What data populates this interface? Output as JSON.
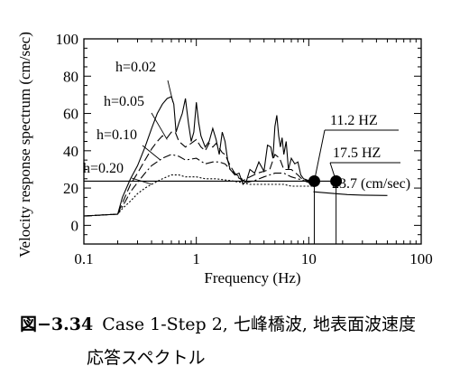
{
  "chart_data": {
    "type": "line",
    "xscale": "log",
    "xlim": [
      0.1,
      100
    ],
    "ylim": [
      -10,
      100
    ],
    "xlabel": "Frequency (Hz)",
    "ylabel": "Velocity response spectrum (cm/sec)",
    "xticks": [
      "0.1",
      "1",
      "10",
      "100"
    ],
    "yticks": [
      "0",
      "20",
      "40",
      "60",
      "80",
      "100"
    ],
    "grid": false,
    "series": [
      {
        "name": "h=0.02",
        "dash": "solid",
        "label_text": "h=0.02",
        "x": [
          0.1,
          0.2,
          0.22,
          0.26,
          0.3,
          0.35,
          0.4,
          0.45,
          0.5,
          0.55,
          0.6,
          0.63,
          0.66,
          0.7,
          0.75,
          0.8,
          0.85,
          0.9,
          0.95,
          1.0,
          1.05,
          1.1,
          1.2,
          1.3,
          1.4,
          1.5,
          1.6,
          1.7,
          1.8,
          1.9,
          2.0,
          2.2,
          2.4,
          2.6,
          2.8,
          3.0,
          3.3,
          3.6,
          4.0,
          4.3,
          4.6,
          4.8,
          5.0,
          5.2,
          5.4,
          5.6,
          5.8,
          6.0,
          6.3,
          6.6,
          7.0,
          7.5,
          8.0,
          8.5,
          9.0,
          10.0,
          11.0
        ],
        "y": [
          5,
          6,
          15,
          25,
          32,
          42,
          52,
          60,
          65,
          68,
          69,
          65,
          50,
          55,
          60,
          68,
          55,
          45,
          50,
          66,
          55,
          48,
          42,
          45,
          52,
          46,
          38,
          50,
          45,
          35,
          30,
          27,
          28,
          22,
          24,
          30,
          28,
          34,
          29,
          43,
          42,
          36,
          53,
          59,
          48,
          42,
          47,
          38,
          45,
          30,
          36,
          33,
          34,
          27,
          25,
          24,
          23
        ]
      },
      {
        "name": "h=0.05",
        "dash": "long",
        "label_text": "h=0.05",
        "x": [
          0.1,
          0.2,
          0.22,
          0.26,
          0.3,
          0.35,
          0.4,
          0.45,
          0.5,
          0.55,
          0.6,
          0.65,
          0.7,
          0.8,
          0.9,
          1.0,
          1.1,
          1.2,
          1.3,
          1.4,
          1.5,
          1.7,
          1.8,
          2.0,
          2.3,
          2.6,
          3.0,
          3.5,
          4.0,
          4.5,
          5.0,
          5.5,
          6.0,
          7.0,
          8.0,
          9.0,
          10.0,
          11.0
        ],
        "y": [
          5,
          6,
          12,
          22,
          28,
          35,
          41,
          45,
          48,
          47,
          50,
          50,
          45,
          42,
          44,
          46,
          42,
          40,
          44,
          42,
          44,
          39,
          38,
          32,
          26,
          24,
          26,
          28,
          29,
          30,
          38,
          36,
          30,
          30,
          27,
          24,
          24,
          23
        ]
      },
      {
        "name": "h=0.10",
        "dash": "dashdot",
        "label_text": "h=0.10",
        "x": [
          0.1,
          0.2,
          0.22,
          0.26,
          0.3,
          0.35,
          0.4,
          0.5,
          0.6,
          0.7,
          0.8,
          1.0,
          1.2,
          1.4,
          1.6,
          1.8,
          2.0,
          2.4,
          2.8,
          3.3,
          4.0,
          5.0,
          6.0,
          7.0,
          8.0,
          9.0,
          10.0,
          11.0
        ],
        "y": [
          5,
          6,
          10,
          18,
          23,
          28,
          32,
          36,
          38,
          37,
          35,
          36,
          33,
          34,
          34,
          33,
          30,
          26,
          23,
          24,
          26,
          28,
          28,
          26,
          25,
          24,
          23,
          23
        ]
      },
      {
        "name": "h=0.20",
        "dash": "dotted",
        "label_text": "h=0.20",
        "x": [
          0.1,
          0.2,
          0.22,
          0.26,
          0.3,
          0.35,
          0.4,
          0.5,
          0.6,
          0.7,
          0.8,
          1.0,
          1.2,
          1.5,
          2.0,
          2.5,
          3.0,
          4.0,
          5.0,
          6.0,
          7.0,
          8.0,
          10.0,
          11.0
        ],
        "y": [
          5,
          6,
          9,
          13,
          17,
          20,
          22,
          25,
          27,
          27,
          26,
          26,
          25,
          25,
          24,
          23,
          22,
          22,
          22,
          22,
          21,
          21,
          21,
          21
        ]
      },
      {
        "name": "",
        "dash": "solid",
        "label_text": "",
        "x": [
          11.0,
          14.0,
          17.5,
          22.0,
          30.0,
          50.0
        ],
        "y": [
          18,
          17.5,
          17,
          16.5,
          16.2,
          16
        ]
      }
    ],
    "reference_line": {
      "y": 23.7,
      "xmin": 0.1,
      "xmax": 17.5,
      "label": "23.7 (cm/sec)"
    },
    "markers": [
      {
        "x": 11.2,
        "y": 23.7,
        "label": "11.2 HZ"
      },
      {
        "x": 17.5,
        "y": 23.7,
        "label": "17.5 HZ"
      }
    ]
  },
  "caption": {
    "figure_number": "図−3.34",
    "line1": "Case 1-Step 2, 七峰橋波, 地表面波速度",
    "line2": "応答スペクトル"
  }
}
